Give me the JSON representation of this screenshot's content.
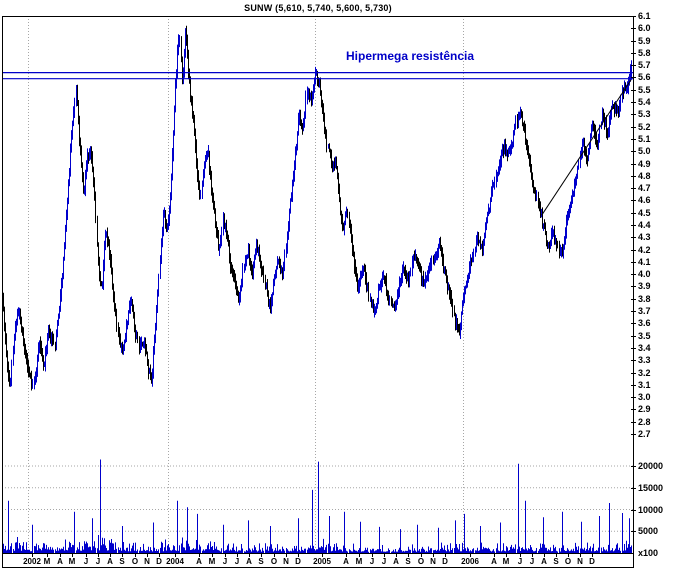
{
  "title": "SUNW (5,610, 5,740, 5,600, 5,730)",
  "annotation": {
    "text": "Hipermega resistência",
    "color": "#0000c8"
  },
  "axes": {
    "price_ticks": [
      "6.1",
      "6.0",
      "5.9",
      "5.8",
      "5.7",
      "5.6",
      "5.5",
      "5.4",
      "5.3",
      "5.2",
      "5.1",
      "5.0",
      "4.9",
      "4.8",
      "4.7",
      "4.6",
      "4.5",
      "4.4",
      "4.3",
      "4.2",
      "4.1",
      "4.0",
      "3.9",
      "3.8",
      "3.7",
      "3.6",
      "3.5",
      "3.4",
      "3.3",
      "3.2",
      "3.1",
      "3.0",
      "2.9",
      "2.8",
      "2.7"
    ],
    "volume_ticks": [
      {
        "label": "20000",
        "value": 20000
      },
      {
        "label": "15000",
        "value": 15000
      },
      {
        "label": "10000",
        "value": 10000
      },
      {
        "label": "5000",
        "value": 5000
      }
    ],
    "volume_unit": "x100",
    "year_gridlines_t": [
      0.041,
      0.264,
      0.498,
      0.733
    ],
    "x_labels": [
      {
        "text": "2002",
        "t": 0.047
      },
      {
        "text": "M",
        "t": 0.071
      },
      {
        "text": "A",
        "t": 0.092
      },
      {
        "text": "M",
        "t": 0.112
      },
      {
        "text": "J",
        "t": 0.133
      },
      {
        "text": "J",
        "t": 0.153
      },
      {
        "text": "A",
        "t": 0.172
      },
      {
        "text": "S",
        "t": 0.191
      },
      {
        "text": "O",
        "t": 0.212
      },
      {
        "text": "N",
        "t": 0.231
      },
      {
        "text": "D",
        "t": 0.25
      },
      {
        "text": "2004",
        "t": 0.275
      },
      {
        "text": "A",
        "t": 0.313
      },
      {
        "text": "M",
        "t": 0.334
      },
      {
        "text": "J",
        "t": 0.354
      },
      {
        "text": "J",
        "t": 0.373
      },
      {
        "text": "A",
        "t": 0.392
      },
      {
        "text": "S",
        "t": 0.411
      },
      {
        "text": "O",
        "t": 0.432
      },
      {
        "text": "N",
        "t": 0.451
      },
      {
        "text": "D",
        "t": 0.47
      },
      {
        "text": "2005",
        "t": 0.509
      },
      {
        "text": "A",
        "t": 0.547
      },
      {
        "text": "M",
        "t": 0.568
      },
      {
        "text": "J",
        "t": 0.589
      },
      {
        "text": "J",
        "t": 0.608
      },
      {
        "text": "A",
        "t": 0.627
      },
      {
        "text": "S",
        "t": 0.646
      },
      {
        "text": "O",
        "t": 0.666
      },
      {
        "text": "N",
        "t": 0.685
      },
      {
        "text": "D",
        "t": 0.704
      },
      {
        "text": "2006",
        "t": 0.744
      },
      {
        "text": "A",
        "t": 0.782
      },
      {
        "text": "M",
        "t": 0.802
      },
      {
        "text": "J",
        "t": 0.823
      },
      {
        "text": "J",
        "t": 0.842
      },
      {
        "text": "A",
        "t": 0.861
      },
      {
        "text": "S",
        "t": 0.88
      },
      {
        "text": "O",
        "t": 0.9
      },
      {
        "text": "N",
        "t": 0.919
      },
      {
        "text": "D",
        "t": 0.938
      }
    ]
  },
  "chart_data": {
    "type": "ohlc-with-volume",
    "symbol": "SUNW",
    "title": "SUNW (5,610, 5,740, 5,600, 5,730)",
    "quote": {
      "open": "5,610",
      "high": "5,740",
      "low": "5,600",
      "close": "5,730"
    },
    "price_axis": {
      "min": 2.7,
      "max": 6.1,
      "step": 0.1
    },
    "volume_axis": {
      "min": 0,
      "max": 20000,
      "step": 5000,
      "unit": "x100"
    },
    "resistance_levels": [
      5.64,
      5.59
    ],
    "resistance_label": "Hipermega resistência",
    "trendline": [
      [
        0.858,
        4.48
      ],
      [
        1.0,
        5.58
      ]
    ],
    "price_keypoints": [
      [
        0.0,
        3.85
      ],
      [
        0.006,
        3.4
      ],
      [
        0.012,
        3.05
      ],
      [
        0.018,
        3.5
      ],
      [
        0.026,
        3.7
      ],
      [
        0.034,
        3.4
      ],
      [
        0.042,
        3.2
      ],
      [
        0.05,
        3.1
      ],
      [
        0.058,
        3.45
      ],
      [
        0.066,
        3.25
      ],
      [
        0.074,
        3.55
      ],
      [
        0.082,
        3.4
      ],
      [
        0.09,
        3.7
      ],
      [
        0.098,
        4.2
      ],
      [
        0.106,
        4.8
      ],
      [
        0.112,
        5.25
      ],
      [
        0.117,
        5.5
      ],
      [
        0.123,
        5.0
      ],
      [
        0.129,
        4.65
      ],
      [
        0.135,
        4.95
      ],
      [
        0.141,
        5.05
      ],
      [
        0.147,
        4.6
      ],
      [
        0.153,
        4.0
      ],
      [
        0.158,
        3.9
      ],
      [
        0.164,
        4.35
      ],
      [
        0.17,
        4.2
      ],
      [
        0.177,
        3.8
      ],
      [
        0.184,
        3.5
      ],
      [
        0.191,
        3.35
      ],
      [
        0.198,
        3.6
      ],
      [
        0.205,
        3.8
      ],
      [
        0.211,
        3.55
      ],
      [
        0.218,
        3.4
      ],
      [
        0.225,
        3.45
      ],
      [
        0.231,
        3.25
      ],
      [
        0.237,
        3.1
      ],
      [
        0.244,
        3.6
      ],
      [
        0.25,
        4.1
      ],
      [
        0.256,
        4.5
      ],
      [
        0.261,
        4.35
      ],
      [
        0.266,
        4.55
      ],
      [
        0.271,
        5.0
      ],
      [
        0.276,
        5.6
      ],
      [
        0.281,
        5.95
      ],
      [
        0.286,
        5.55
      ],
      [
        0.291,
        6.0
      ],
      [
        0.297,
        5.55
      ],
      [
        0.303,
        5.3
      ],
      [
        0.309,
        4.9
      ],
      [
        0.315,
        4.6
      ],
      [
        0.321,
        4.9
      ],
      [
        0.327,
        5.0
      ],
      [
        0.333,
        4.65
      ],
      [
        0.339,
        4.4
      ],
      [
        0.345,
        4.2
      ],
      [
        0.351,
        4.45
      ],
      [
        0.357,
        4.3
      ],
      [
        0.363,
        4.05
      ],
      [
        0.369,
        3.95
      ],
      [
        0.376,
        3.8
      ],
      [
        0.383,
        4.05
      ],
      [
        0.39,
        4.2
      ],
      [
        0.397,
        4.0
      ],
      [
        0.404,
        4.25
      ],
      [
        0.411,
        4.1
      ],
      [
        0.418,
        3.9
      ],
      [
        0.425,
        3.72
      ],
      [
        0.432,
        3.95
      ],
      [
        0.439,
        4.12
      ],
      [
        0.446,
        3.98
      ],
      [
        0.452,
        4.3
      ],
      [
        0.459,
        4.65
      ],
      [
        0.466,
        5.0
      ],
      [
        0.472,
        5.3
      ],
      [
        0.478,
        5.15
      ],
      [
        0.484,
        5.5
      ],
      [
        0.49,
        5.4
      ],
      [
        0.498,
        5.62
      ],
      [
        0.506,
        5.5
      ],
      [
        0.512,
        5.2
      ],
      [
        0.518,
        5.0
      ],
      [
        0.524,
        4.9
      ],
      [
        0.53,
        4.95
      ],
      [
        0.536,
        4.6
      ],
      [
        0.542,
        4.35
      ],
      [
        0.548,
        4.55
      ],
      [
        0.554,
        4.3
      ],
      [
        0.56,
        4.0
      ],
      [
        0.566,
        3.9
      ],
      [
        0.574,
        4.05
      ],
      [
        0.582,
        3.85
      ],
      [
        0.59,
        3.7
      ],
      [
        0.598,
        3.85
      ],
      [
        0.606,
        4.0
      ],
      [
        0.614,
        3.8
      ],
      [
        0.622,
        3.7
      ],
      [
        0.63,
        3.9
      ],
      [
        0.638,
        4.05
      ],
      [
        0.646,
        3.95
      ],
      [
        0.654,
        4.15
      ],
      [
        0.662,
        4.05
      ],
      [
        0.67,
        3.9
      ],
      [
        0.678,
        4.0
      ],
      [
        0.686,
        4.15
      ],
      [
        0.694,
        4.25
      ],
      [
        0.702,
        4.05
      ],
      [
        0.71,
        3.85
      ],
      [
        0.718,
        3.65
      ],
      [
        0.726,
        3.55
      ],
      [
        0.733,
        3.8
      ],
      [
        0.745,
        4.1
      ],
      [
        0.755,
        4.3
      ],
      [
        0.762,
        4.2
      ],
      [
        0.772,
        4.5
      ],
      [
        0.782,
        4.75
      ],
      [
        0.79,
        4.9
      ],
      [
        0.798,
        5.05
      ],
      [
        0.806,
        4.95
      ],
      [
        0.815,
        5.2
      ],
      [
        0.822,
        5.35
      ],
      [
        0.83,
        5.15
      ],
      [
        0.838,
        4.9
      ],
      [
        0.845,
        4.7
      ],
      [
        0.852,
        4.55
      ],
      [
        0.86,
        4.4
      ],
      [
        0.868,
        4.2
      ],
      [
        0.875,
        4.35
      ],
      [
        0.882,
        4.2
      ],
      [
        0.89,
        4.15
      ],
      [
        0.898,
        4.45
      ],
      [
        0.906,
        4.6
      ],
      [
        0.914,
        4.85
      ],
      [
        0.922,
        5.05
      ],
      [
        0.93,
        4.95
      ],
      [
        0.938,
        5.2
      ],
      [
        0.946,
        5.05
      ],
      [
        0.954,
        5.3
      ],
      [
        0.962,
        5.15
      ],
      [
        0.97,
        5.4
      ],
      [
        0.978,
        5.3
      ],
      [
        0.986,
        5.5
      ],
      [
        0.993,
        5.55
      ],
      [
        1.0,
        5.73
      ]
    ],
    "volume_envelope": [
      [
        0.0,
        4500
      ],
      [
        0.06,
        3000
      ],
      [
        0.1,
        3500
      ],
      [
        0.13,
        4500
      ],
      [
        0.16,
        5000
      ],
      [
        0.2,
        2800
      ],
      [
        0.25,
        3200
      ],
      [
        0.29,
        4500
      ],
      [
        0.33,
        3000
      ],
      [
        0.4,
        2500
      ],
      [
        0.46,
        3000
      ],
      [
        0.5,
        4000
      ],
      [
        0.55,
        2800
      ],
      [
        0.62,
        2200
      ],
      [
        0.68,
        2400
      ],
      [
        0.73,
        3200
      ],
      [
        0.78,
        2800
      ],
      [
        0.82,
        3500
      ],
      [
        0.88,
        2800
      ],
      [
        0.94,
        3200
      ],
      [
        1.0,
        3800
      ]
    ],
    "volume_spikes": [
      [
        0.01,
        12000
      ],
      [
        0.048,
        6500
      ],
      [
        0.115,
        9500
      ],
      [
        0.143,
        8000
      ],
      [
        0.155,
        21500
      ],
      [
        0.19,
        6200
      ],
      [
        0.24,
        7000
      ],
      [
        0.279,
        12000
      ],
      [
        0.293,
        10500
      ],
      [
        0.31,
        9000
      ],
      [
        0.35,
        6500
      ],
      [
        0.39,
        7500
      ],
      [
        0.425,
        6200
      ],
      [
        0.47,
        8000
      ],
      [
        0.492,
        14500
      ],
      [
        0.503,
        21000
      ],
      [
        0.52,
        8500
      ],
      [
        0.545,
        9500
      ],
      [
        0.57,
        7200
      ],
      [
        0.6,
        6000
      ],
      [
        0.632,
        5500
      ],
      [
        0.66,
        6500
      ],
      [
        0.692,
        5800
      ],
      [
        0.72,
        7500
      ],
      [
        0.735,
        9000
      ],
      [
        0.76,
        6200
      ],
      [
        0.792,
        7000
      ],
      [
        0.82,
        20500
      ],
      [
        0.832,
        12000
      ],
      [
        0.86,
        8200
      ],
      [
        0.89,
        9500
      ],
      [
        0.92,
        7200
      ],
      [
        0.95,
        8500
      ],
      [
        0.965,
        11500
      ],
      [
        0.985,
        9200
      ],
      [
        0.997,
        8000
      ]
    ],
    "colors": {
      "bar_up": "#0000cc",
      "bar_down": "#000000",
      "volume": "#0000cc",
      "resistance": "#0000c8",
      "grid": "#a6a6a6"
    }
  }
}
